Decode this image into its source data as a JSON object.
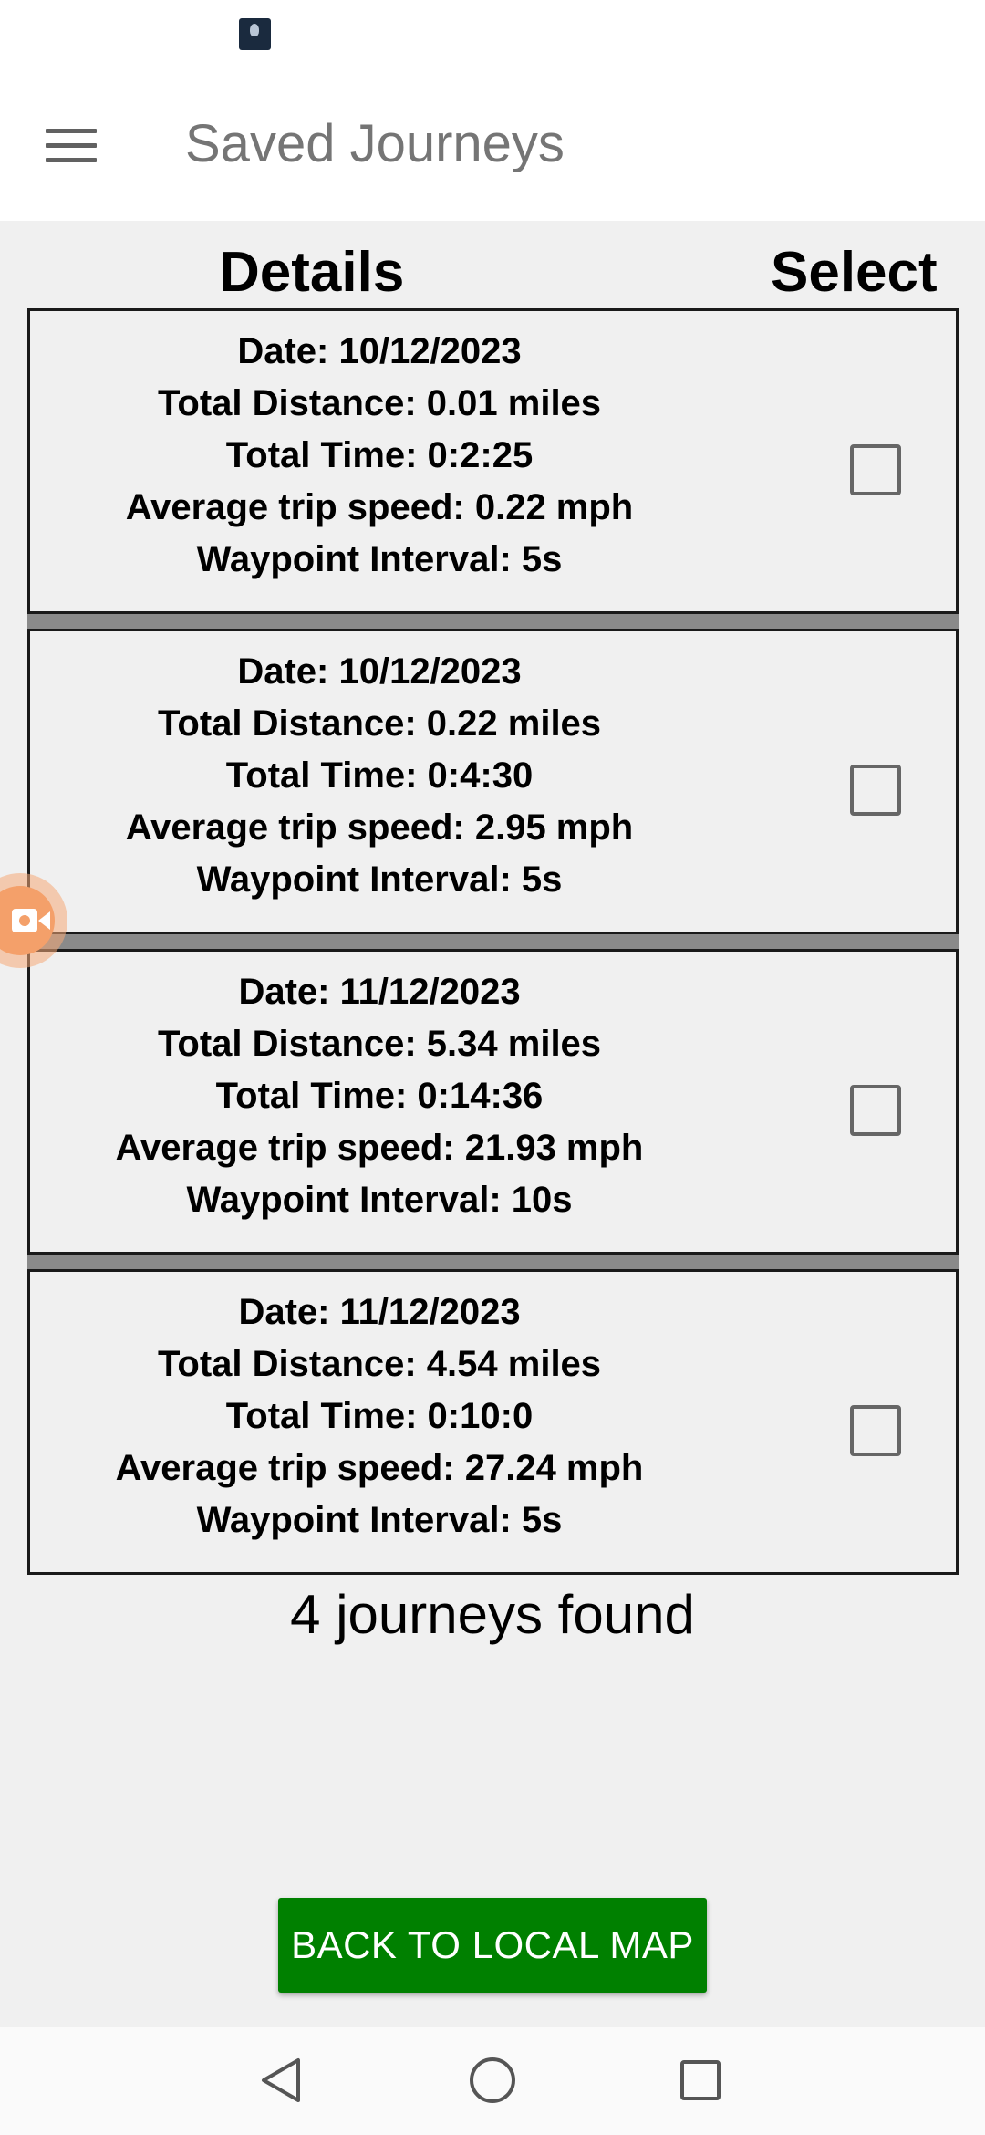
{
  "app_bar": {
    "title": "Saved Journeys",
    "menu_icon": "hamburger-menu-icon"
  },
  "columns": {
    "details": "Details",
    "select": "Select"
  },
  "journeys": [
    {
      "date": "Date: 10/12/2023",
      "distance": "Total Distance: 0.01 miles",
      "time": "Total Time: 0:2:25",
      "speed": "Average trip speed: 0.22 mph",
      "interval": "Waypoint Interval: 5s",
      "selected": false
    },
    {
      "date": "Date: 10/12/2023",
      "distance": "Total Distance: 0.22 miles",
      "time": "Total Time: 0:4:30",
      "speed": "Average trip speed: 2.95 mph",
      "interval": "Waypoint Interval: 5s",
      "selected": false
    },
    {
      "date": "Date: 11/12/2023",
      "distance": "Total Distance: 5.34 miles",
      "time": "Total Time: 0:14:36",
      "speed": "Average trip speed: 21.93 mph",
      "interval": "Waypoint Interval: 10s",
      "selected": false
    },
    {
      "date": "Date: 11/12/2023",
      "distance": "Total Distance: 4.54 miles",
      "time": "Total Time: 0:10:0",
      "speed": "Average trip speed: 27.24 mph",
      "interval": "Waypoint Interval: 5s",
      "selected": false
    }
  ],
  "status": {
    "count_text": "4 journeys found"
  },
  "actions": {
    "back_label": "BACK TO LOCAL MAP"
  },
  "colors": {
    "app_bar": "#ffffff",
    "content_background": "#f0f0f0",
    "primary_button": "#008000",
    "separator": "#8a8a8a",
    "record_badge": "#f4a06a"
  },
  "icons": {
    "status_thumbnail": "notification-thumbnail-icon",
    "floating": "screen-record-icon",
    "nav": [
      "back-triangle-icon",
      "home-circle-icon",
      "recents-square-icon"
    ]
  }
}
